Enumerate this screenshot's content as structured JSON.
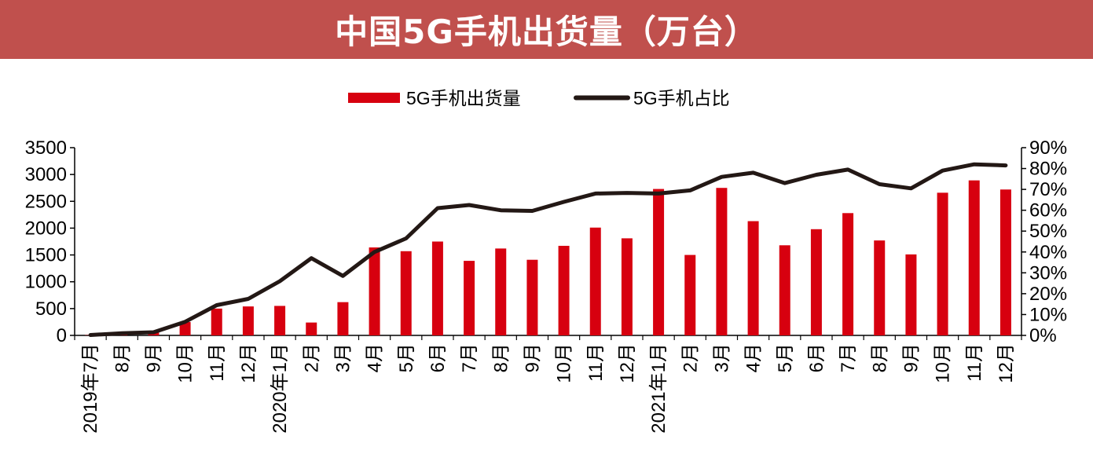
{
  "header": {
    "title": "中国5G手机出货量（万台）"
  },
  "colors": {
    "banner": "#c0504d",
    "bar": "#d7000f",
    "line": "#231815"
  },
  "chart_data": {
    "type": "bar",
    "title": "中国5G手机出货量（万台）",
    "categories": [
      "2019年7月",
      "8月",
      "9月",
      "10月",
      "11月",
      "12月",
      "2020年1月",
      "2月",
      "3月",
      "4月",
      "5月",
      "6月",
      "7月",
      "8月",
      "9月",
      "10月",
      "11月",
      "12月",
      "2021年1月",
      "2月",
      "3月",
      "4月",
      "5月",
      "6月",
      "7月",
      "8月",
      "9月",
      "10月",
      "11月",
      "12月"
    ],
    "series": [
      {
        "name": "5G手机出货量",
        "type": "bar",
        "axis": "left",
        "values": [
          5,
          10,
          60,
          250,
          500,
          540,
          550,
          240,
          620,
          1640,
          1570,
          1750,
          1390,
          1620,
          1410,
          1670,
          2010,
          1810,
          2730,
          1500,
          2750,
          2130,
          1680,
          1980,
          2280,
          1770,
          1510,
          2660,
          2890,
          2720
        ]
      },
      {
        "name": "5G手机占比",
        "type": "line",
        "axis": "right",
        "values": [
          0.2,
          1.0,
          1.5,
          6.5,
          14.5,
          17.5,
          26,
          37,
          28.5,
          40,
          46.5,
          61,
          62.5,
          60,
          59.7,
          64,
          68,
          68.3,
          68,
          69.5,
          76,
          78,
          73,
          77,
          79.5,
          72.5,
          70.5,
          79,
          82,
          81.5
        ]
      }
    ],
    "y_left": {
      "min": 0,
      "max": 3500,
      "ticks": [
        "0",
        "500",
        "1000",
        "1500",
        "2000",
        "2500",
        "3000",
        "3500"
      ]
    },
    "y_right": {
      "min": 0,
      "max": 90,
      "ticks": [
        "0%",
        "10%",
        "20%",
        "30%",
        "40%",
        "50%",
        "60%",
        "70%",
        "80%",
        "90%"
      ]
    },
    "legend": {
      "position": "top-center",
      "items": [
        {
          "label": "5G手机出货量",
          "kind": "bar"
        },
        {
          "label": "5G手机占比",
          "kind": "line"
        }
      ]
    },
    "grid": false
  }
}
